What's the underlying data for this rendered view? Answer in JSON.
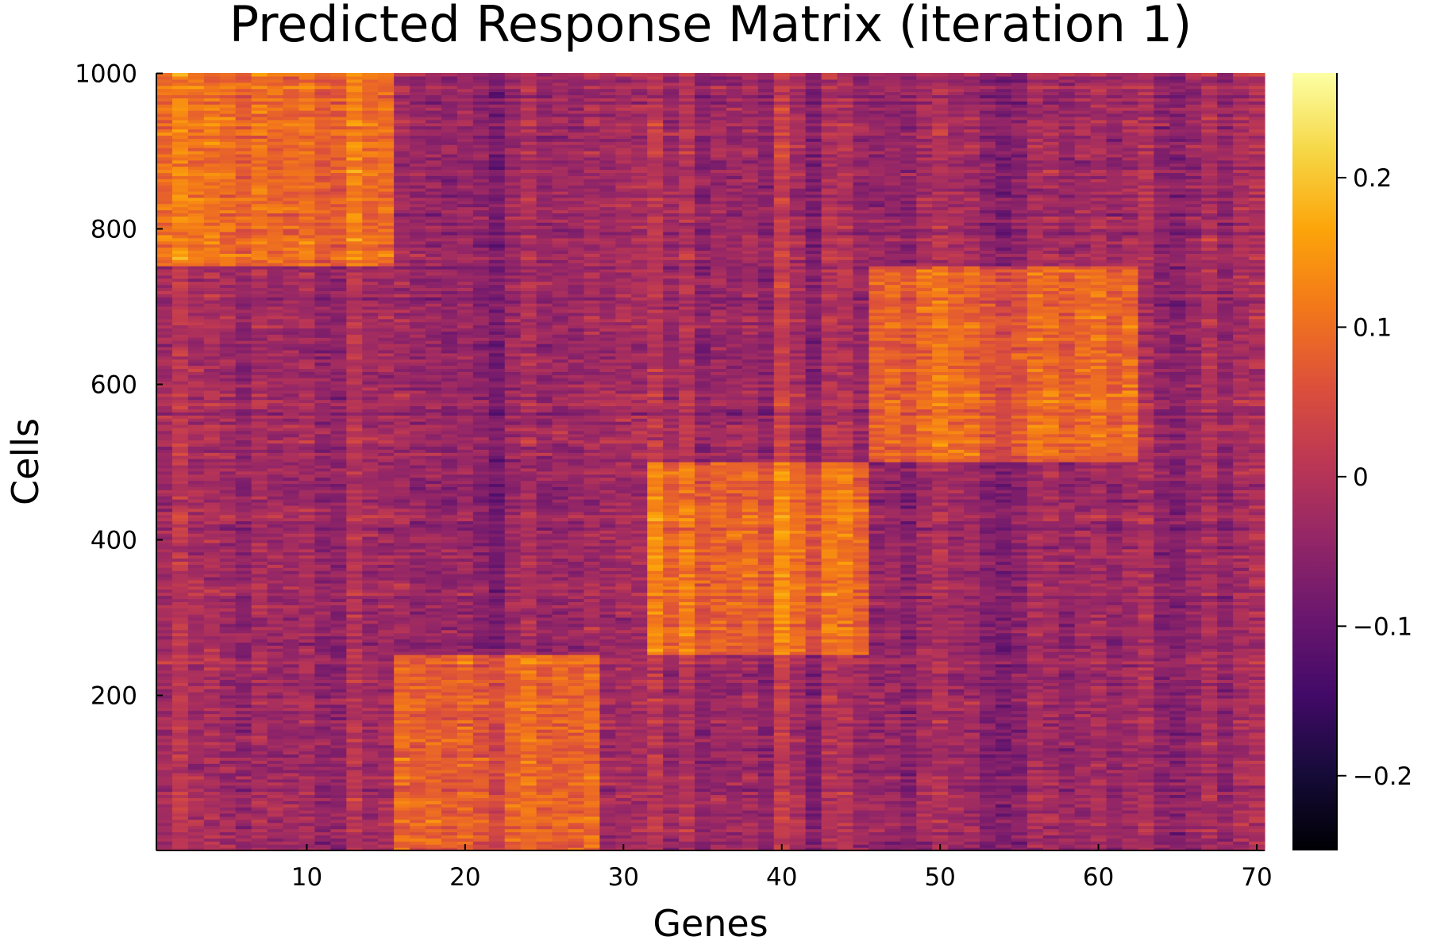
{
  "chart_data": {
    "type": "heatmap",
    "title": "Predicted Response Matrix (iteration 1)",
    "xlabel": "Genes",
    "ylabel": "Cells",
    "x_range": [
      0.5,
      70.5
    ],
    "y_range": [
      0.5,
      1000.5
    ],
    "n_genes": 70,
    "n_cells": 1000,
    "x_ticks": [
      10,
      20,
      30,
      40,
      50,
      60,
      70
    ],
    "y_ticks": [
      200,
      400,
      600,
      800,
      1000
    ],
    "colorbar": {
      "colormap": "inferno",
      "clim": [
        -0.25,
        0.27
      ],
      "ticks": [
        -0.2,
        -0.1,
        0,
        0.1,
        0.2
      ],
      "tick_labels": [
        "−0.2",
        "−0.1",
        "0",
        "0.1",
        "0.2"
      ]
    },
    "grid": false,
    "cell_blocks": [
      {
        "cells": [
          1,
          250
        ],
        "high_genes": [
          16,
          28
        ]
      },
      {
        "cells": [
          251,
          500
        ],
        "high_genes": [
          32,
          45
        ]
      },
      {
        "cells": [
          501,
          750
        ],
        "high_genes": [
          46,
          62
        ]
      },
      {
        "cells": [
          751,
          1000
        ],
        "high_genes": [
          1,
          15
        ]
      }
    ],
    "block_mean_high": 0.09,
    "block_mean_background": -0.03
  }
}
